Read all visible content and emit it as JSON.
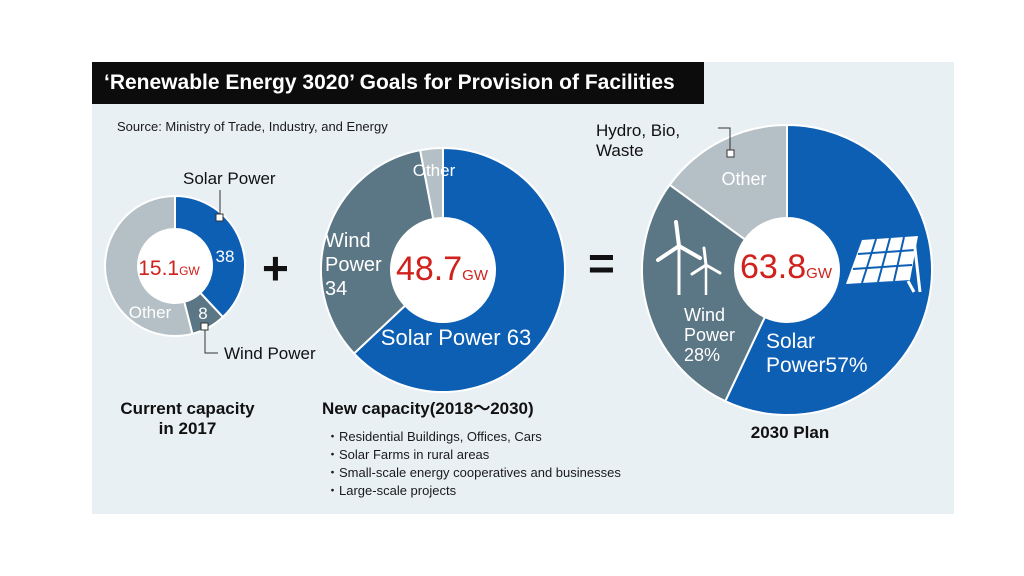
{
  "title": "‘Renewable Energy 3020’ Goals for Provision of Facilities",
  "source": "Source: Ministry of Trade, Industry, and Energy",
  "colors": {
    "solar": "#0d5fb4",
    "wind": "#5b7684",
    "other": "#b5c0c6",
    "total_text": "#d0211c",
    "background": "#e8f0f4"
  },
  "symbols": {
    "plus": "+",
    "equals": "="
  },
  "chart_data": [
    {
      "type": "pie",
      "name": "current",
      "caption": [
        "Current capacity",
        "in 2017"
      ],
      "total": {
        "value": "15.1",
        "unit": "GW"
      },
      "slices": [
        {
          "key": "solar",
          "label": "Solar Power",
          "value": 38,
          "value_label": "38"
        },
        {
          "key": "wind",
          "label": "Wind Power",
          "value": 8,
          "value_label": "8"
        },
        {
          "key": "other",
          "label": "Other",
          "value": 54,
          "value_label": ""
        }
      ]
    },
    {
      "type": "pie",
      "name": "new",
      "caption": [
        "New capacity(2018～2030)"
      ],
      "total": {
        "value": "48.7",
        "unit": "GW"
      },
      "slices": [
        {
          "key": "solar",
          "label": "Solar Power 63",
          "value": 63
        },
        {
          "key": "wind",
          "label": [
            "Wind",
            "Power",
            "34"
          ],
          "value": 34
        },
        {
          "key": "other",
          "label": "Other",
          "value": 3
        }
      ]
    },
    {
      "type": "pie",
      "name": "plan2030",
      "caption": [
        "2030 Plan"
      ],
      "total": {
        "value": "63.8",
        "unit": "GW"
      },
      "slices": [
        {
          "key": "solar",
          "label": [
            "Solar",
            "Power57%"
          ],
          "value": 57
        },
        {
          "key": "wind",
          "label": [
            "Wind",
            "Power",
            "28%"
          ],
          "value": 28
        },
        {
          "key": "other",
          "label": "Other",
          "value": 15
        }
      ],
      "callout": [
        "Hydro, Bio,",
        "Waste"
      ]
    }
  ],
  "new_capacity_items": [
    "Residential Buildings, Offices, Cars",
    "Solar Farms in rural areas",
    "Small-scale energy cooperatives and businesses",
    "Large-scale projects"
  ]
}
